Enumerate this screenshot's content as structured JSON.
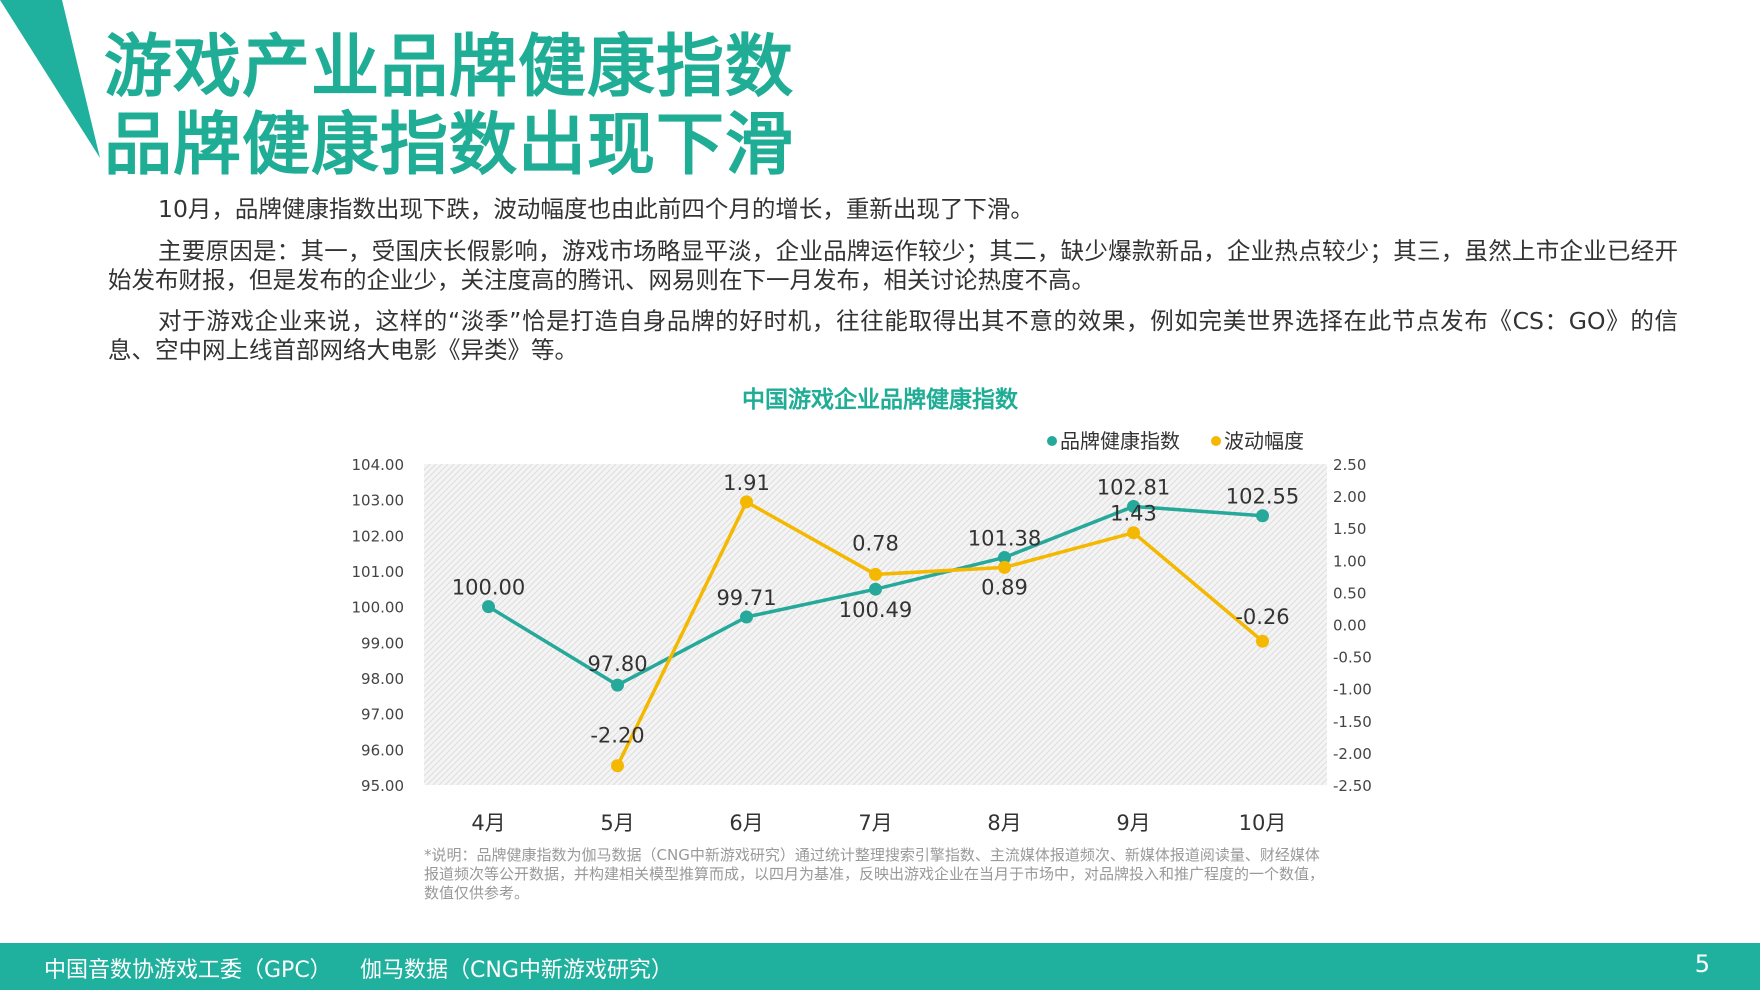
{
  "header": {
    "title_line1": "游戏产业品牌健康指数",
    "title_line2": "品牌健康指数出现下滑"
  },
  "body": {
    "paragraphs": [
      "10月，品牌健康指数出现下跌，波动幅度也由此前四个月的增长，重新出现了下滑。",
      "主要原因是：其一，受国庆长假影响，游戏市场略显平淡，企业品牌运作较少；其二，缺少爆款新品，企业热点较少；其三，虽然上市企业已经开始发布财报，但是发布的企业少，关注度高的腾讯、网易则在下一月发布，相关讨论热度不高。",
      "对于游戏企业来说，这样的“淡季”恰是打造自身品牌的好时机，往往能取得出其不意的效果，例如完美世界选择在此节点发布《CS：GO》的信息、空中网上线首部网络大电影《异类》等。"
    ]
  },
  "chart_data": {
    "type": "line",
    "title": "中国游戏企业品牌健康指数",
    "categories": [
      "4月",
      "5月",
      "6月",
      "7月",
      "8月",
      "9月",
      "10月"
    ],
    "series": [
      {
        "name": "品牌健康指数",
        "axis": "left",
        "color": "#26a99a",
        "values": [
          100.0,
          97.8,
          99.71,
          100.49,
          101.38,
          102.81,
          102.55
        ],
        "labels": [
          "100.00",
          "97.80",
          "99.71",
          "100.49",
          "101.38",
          "102.81",
          "102.55"
        ]
      },
      {
        "name": "波动幅度",
        "axis": "right",
        "color": "#f5b800",
        "values": [
          null,
          -2.2,
          1.91,
          0.78,
          0.89,
          1.43,
          -0.26
        ],
        "labels": [
          "",
          "-2.20",
          "1.91",
          "0.78",
          "0.89",
          "1.43",
          "-0.26"
        ]
      }
    ],
    "y_left": {
      "lim": [
        95,
        104
      ],
      "ticks": [
        "104.00",
        "103.00",
        "102.00",
        "101.00",
        "100.00",
        "99.00",
        "98.00",
        "97.00",
        "96.00",
        "95.00"
      ]
    },
    "y_right": {
      "lim": [
        -2.5,
        2.5
      ],
      "ticks": [
        "2.50",
        "2.00",
        "1.50",
        "1.00",
        "0.50",
        "0.00",
        "-0.50",
        "-1.00",
        "-1.50",
        "-2.00",
        "-2.50"
      ]
    },
    "grid": true,
    "legend": "top-right"
  },
  "note": "*说明：品牌健康指数为伽马数据（CNG中新游戏研究）通过统计整理搜索引擎指数、主流媒体报道频次、新媒体报道阅读量、财经媒体报道频次等公开数据，并构建相关模型推算而成，以四月为基准，反映出游戏企业在当月于市场中，对品牌投入和推广程度的一个数值，数值仅供参考。",
  "footer": {
    "org1": "中国音数协游戏工委（GPC）",
    "org2": "伽马数据（CNG中新游戏研究）",
    "page": "5"
  },
  "colors": {
    "accent": "#1fad96",
    "footer_bg": "#1fb19e"
  }
}
